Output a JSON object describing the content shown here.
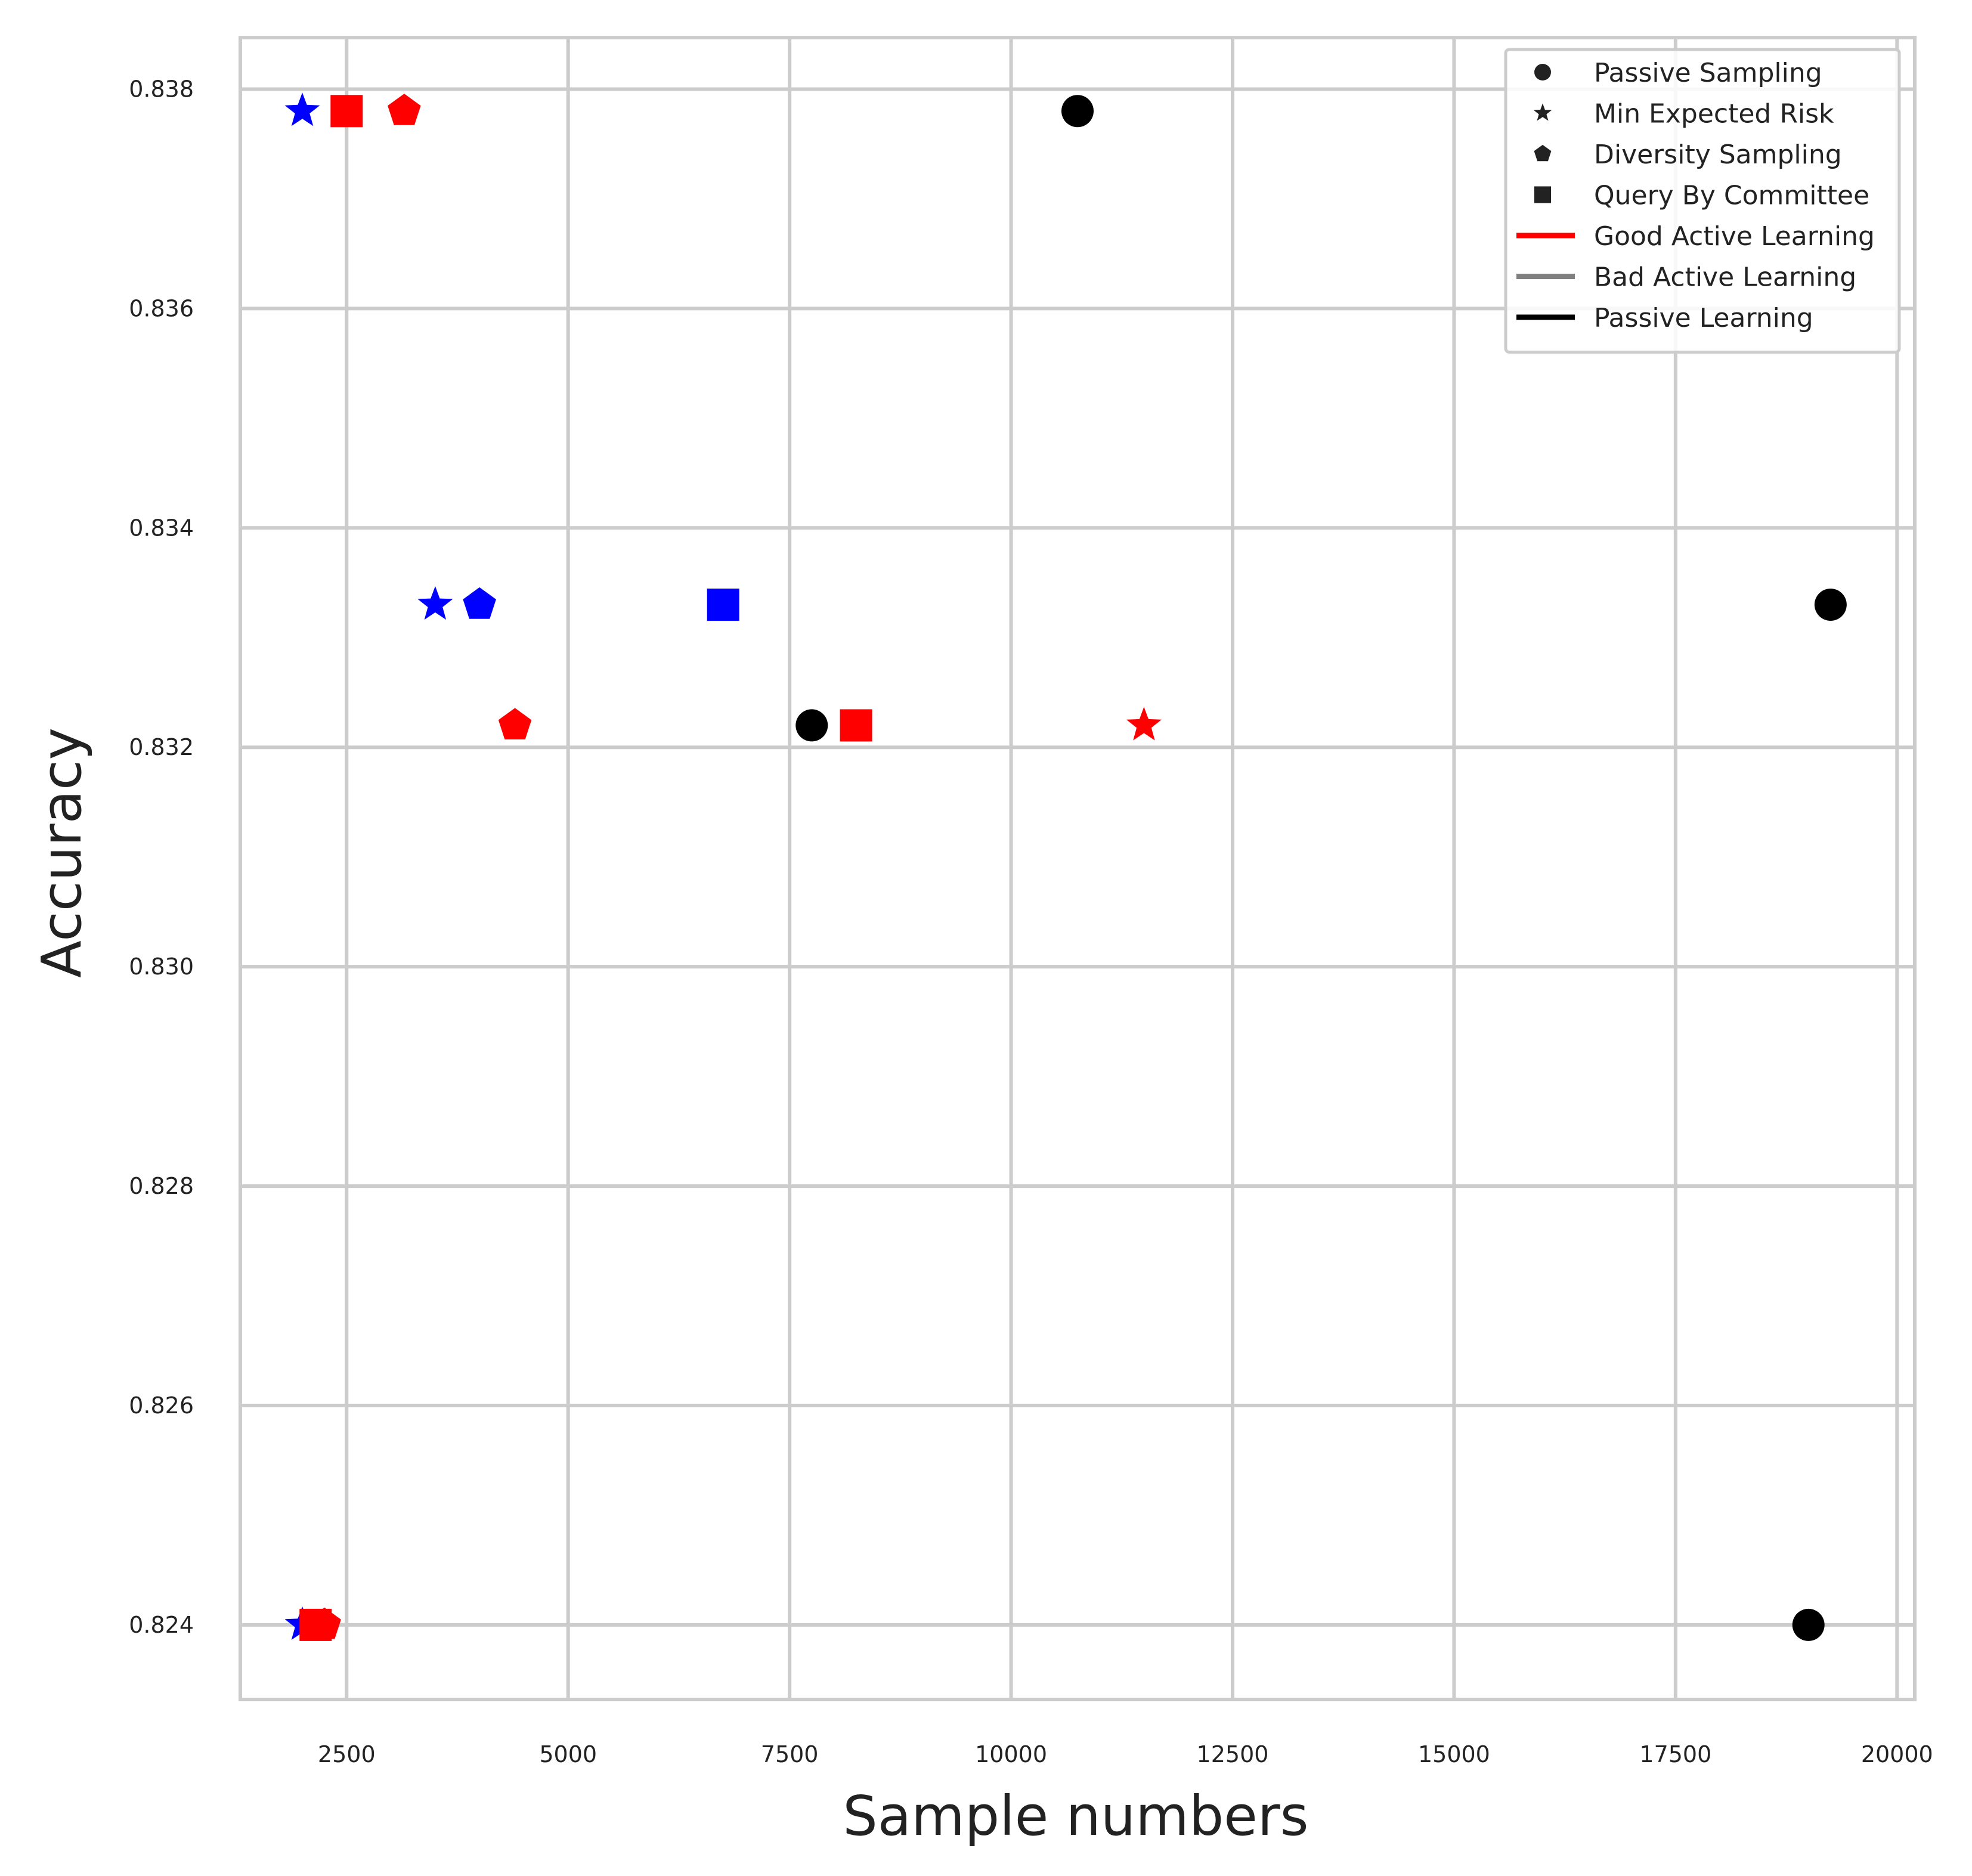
{
  "chart_data": {
    "type": "scatter",
    "xlabel": "Sample numbers",
    "ylabel": "Accuracy",
    "xlim": [
      1300,
      20200
    ],
    "ylim": [
      0.82332,
      0.83847
    ],
    "xticks": [
      2500,
      5000,
      7500,
      10000,
      12500,
      15000,
      17500,
      20000
    ],
    "yticks": [
      0.824,
      0.826,
      0.828,
      0.83,
      0.832,
      0.834,
      0.836,
      0.838
    ],
    "ytick_labels": [
      "0.824",
      "0.826",
      "0.828",
      "0.830",
      "0.832",
      "0.834",
      "0.836",
      "0.838"
    ],
    "grid": true,
    "legend_position": "top-right",
    "colors": {
      "good_active": "#ff0000",
      "bad_active": "#0000ff",
      "passive": "#000000",
      "grid": "#cccccc"
    },
    "legend": [
      {
        "label": "Passive Sampling",
        "kind": "marker",
        "marker": "circle",
        "color": "#222222"
      },
      {
        "label": "Min Expected Risk",
        "kind": "marker",
        "marker": "star",
        "color": "#222222"
      },
      {
        "label": "Diversity Sampling",
        "kind": "marker",
        "marker": "pentagon",
        "color": "#222222"
      },
      {
        "label": "Query By Committee",
        "kind": "marker",
        "marker": "square",
        "color": "#222222"
      },
      {
        "label": "Good Active Learning",
        "kind": "line",
        "color": "#ff0000"
      },
      {
        "label": "Bad Active Learning",
        "kind": "line",
        "color": "#808080"
      },
      {
        "label": "Passive Learning",
        "kind": "line",
        "color": "#000000"
      }
    ],
    "points": [
      {
        "x": 10750,
        "y": 0.8378,
        "marker": "circle",
        "color": "#000000"
      },
      {
        "x": 19250,
        "y": 0.8333,
        "marker": "circle",
        "color": "#000000"
      },
      {
        "x": 7750,
        "y": 0.8322,
        "marker": "circle",
        "color": "#000000"
      },
      {
        "x": 19000,
        "y": 0.824,
        "marker": "circle",
        "color": "#000000"
      },
      {
        "x": 2000,
        "y": 0.8378,
        "marker": "star",
        "color": "#0000ff"
      },
      {
        "x": 3500,
        "y": 0.8333,
        "marker": "star",
        "color": "#0000ff"
      },
      {
        "x": 2000,
        "y": 0.824,
        "marker": "star",
        "color": "#0000ff"
      },
      {
        "x": 11500,
        "y": 0.8322,
        "marker": "star",
        "color": "#ff0000"
      },
      {
        "x": 3150,
        "y": 0.8378,
        "marker": "pentagon",
        "color": "#ff0000"
      },
      {
        "x": 4000,
        "y": 0.8333,
        "marker": "pentagon",
        "color": "#0000ff"
      },
      {
        "x": 4400,
        "y": 0.8322,
        "marker": "pentagon",
        "color": "#ff0000"
      },
      {
        "x": 2250,
        "y": 0.824,
        "marker": "pentagon",
        "color": "#ff0000"
      },
      {
        "x": 2500,
        "y": 0.8378,
        "marker": "square",
        "color": "#ff0000"
      },
      {
        "x": 6750,
        "y": 0.8333,
        "marker": "square",
        "color": "#0000ff"
      },
      {
        "x": 8250,
        "y": 0.8322,
        "marker": "square",
        "color": "#ff0000"
      },
      {
        "x": 2150,
        "y": 0.824,
        "marker": "square",
        "color": "#ff0000"
      }
    ]
  }
}
